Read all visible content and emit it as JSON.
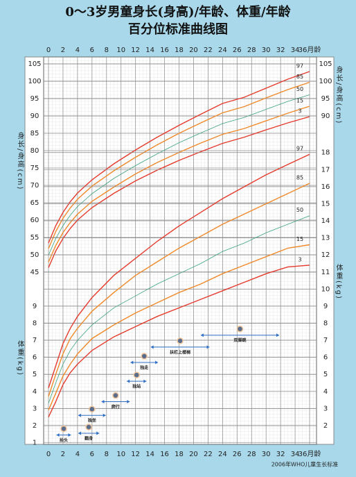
{
  "title": "0～3岁男童身长(身高)/年龄、体重/年龄",
  "subtitle": "百分位标准曲线图",
  "source": "2006年WHO儿童生长标准",
  "chart_data": [
    {
      "type": "line",
      "y_label": "身长/身高(cm)",
      "x": [
        0,
        1,
        2,
        3,
        4,
        6,
        9,
        12,
        15,
        18,
        21,
        24,
        27,
        30,
        33,
        36
      ],
      "xlim": [
        0,
        36
      ],
      "xticks": [
        0,
        2,
        4,
        6,
        8,
        10,
        12,
        14,
        16,
        18,
        20,
        22,
        24,
        26,
        28,
        30,
        32,
        34,
        {
          "value": 36,
          "label": "36月龄"
        }
      ],
      "ylim": [
        43,
        107
      ],
      "yticks": [
        45,
        50,
        55,
        60,
        65,
        70,
        75,
        80,
        85,
        90,
        95,
        100,
        105
      ],
      "y2lim": [
        43,
        107
      ],
      "y2ticks": [
        90,
        95,
        100,
        105
      ],
      "grid": true,
      "series": [
        {
          "name": "97",
          "color": "#e53a2c",
          "values": [
            53.4,
            58.4,
            62.2,
            65.3,
            67.8,
            71.6,
            76.2,
            80.2,
            83.9,
            87.3,
            90.5,
            93.6,
            95.4,
            98.0,
            100.6,
            102.8
          ]
        },
        {
          "name": "85",
          "color": "#f0892a",
          "values": [
            51.8,
            56.7,
            60.5,
            63.5,
            66.0,
            69.8,
            74.2,
            78.1,
            81.7,
            85.0,
            88.0,
            90.9,
            92.7,
            95.2,
            97.6,
            99.7
          ]
        },
        {
          "name": "50",
          "color": "#3aa37a",
          "values": [
            49.9,
            54.7,
            58.4,
            61.4,
            63.9,
            67.6,
            72.0,
            75.7,
            79.1,
            82.3,
            85.1,
            87.8,
            89.6,
            91.9,
            94.2,
            96.1
          ]
        },
        {
          "name": "15",
          "color": "#f0892a",
          "values": [
            47.9,
            52.7,
            56.4,
            59.3,
            61.7,
            65.4,
            69.5,
            73.3,
            76.6,
            79.5,
            82.2,
            84.7,
            86.4,
            88.6,
            90.8,
            92.8
          ]
        },
        {
          "name": "3",
          "color": "#e53a2c",
          "values": [
            46.3,
            51.1,
            54.7,
            57.6,
            60.0,
            63.6,
            67.7,
            71.3,
            74.4,
            77.2,
            79.7,
            82.1,
            83.9,
            86.0,
            88.0,
            89.8
          ]
        }
      ]
    },
    {
      "type": "line",
      "y_label": "体重(kg)",
      "x": [
        0,
        1,
        2,
        3,
        4,
        6,
        9,
        12,
        15,
        18,
        21,
        24,
        27,
        30,
        33,
        36
      ],
      "xlim": [
        0,
        36
      ],
      "ylim": [
        0.9,
        18.6
      ],
      "yticks": [
        1,
        2,
        3,
        4,
        5,
        6,
        7,
        8,
        9
      ],
      "y2lim": [
        0.9,
        18.6
      ],
      "y2ticks": [
        2,
        3,
        4,
        5,
        6,
        7,
        8,
        9,
        10,
        11,
        12,
        13,
        14,
        15,
        16,
        17,
        18
      ],
      "grid": true,
      "series": [
        {
          "name": "97",
          "color": "#e53a2c",
          "values": [
            4.2,
            5.5,
            6.8,
            7.7,
            8.4,
            9.5,
            10.8,
            11.8,
            12.8,
            13.7,
            14.5,
            15.3,
            16.0,
            16.7,
            17.3,
            17.9
          ]
        },
        {
          "name": "85",
          "color": "#f0892a",
          "values": [
            3.7,
            5.0,
            6.2,
            7.1,
            7.7,
            8.7,
            9.8,
            10.8,
            11.6,
            12.4,
            13.1,
            13.8,
            14.4,
            15.0,
            15.6,
            16.2
          ]
        },
        {
          "name": "50",
          "color": "#3aa37a",
          "values": [
            3.3,
            4.5,
            5.6,
            6.4,
            7.0,
            7.9,
            8.9,
            9.6,
            10.3,
            10.9,
            11.5,
            12.2,
            12.7,
            13.3,
            13.8,
            14.3
          ]
        },
        {
          "name": "15",
          "color": "#f0892a",
          "values": [
            2.9,
            3.9,
            4.9,
            5.6,
            6.2,
            7.1,
            7.9,
            8.6,
            9.2,
            9.8,
            10.3,
            10.9,
            11.4,
            11.9,
            12.4,
            12.6
          ]
        },
        {
          "name": "3",
          "color": "#e53a2c",
          "values": [
            2.5,
            3.4,
            4.4,
            5.1,
            5.6,
            6.4,
            7.2,
            7.8,
            8.4,
            8.9,
            9.4,
            9.9,
            10.4,
            10.9,
            11.3,
            11.4
          ]
        }
      ],
      "milestones": [
        {
          "label": "抬头",
          "x": [
            1.1,
            3.1
          ],
          "y": 1.45
        },
        {
          "label": "翻身",
          "x": [
            4.1,
            7.0
          ],
          "y": 1.55
        },
        {
          "label": "独坐",
          "x": [
            4.1,
            7.9
          ],
          "y": 2.6
        },
        {
          "label": "爬行",
          "x": [
            7.3,
            11.2
          ],
          "y": 3.4
        },
        {
          "label": "独站",
          "x": [
            10.8,
            13.5
          ],
          "y": 4.6
        },
        {
          "label": "独走",
          "x": [
            11.3,
            15.1
          ],
          "y": 5.7
        },
        {
          "label": "扶栏上楼梯",
          "x": [
            14.1,
            22.2
          ],
          "y": 6.6
        },
        {
          "label": "双脚跳",
          "x": [
            21.0,
            31.8
          ],
          "y": 7.3
        }
      ]
    }
  ]
}
